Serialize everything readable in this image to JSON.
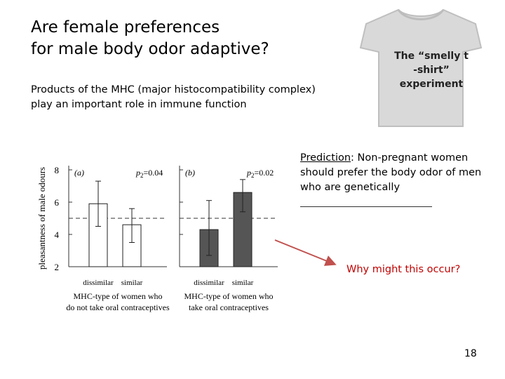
{
  "slide": {
    "title_line1": "Are female preferences",
    "title_line2": "for male body odor adaptive?",
    "subtitle_line1": "Products of the MHC (major histocompatibility complex)",
    "subtitle_line2": "play an important role in immune function",
    "tshirt_line1": "The “smelly t",
    "tshirt_line2": "-shirt”",
    "tshirt_line3": "experiment",
    "prediction_lead": "Prediction",
    "prediction_line1": ":  Non-pregnant women",
    "prediction_line2": "should prefer the body odor of men",
    "prediction_line3": "who are genetically",
    "why": "Why might this occur?",
    "page_number": "18",
    "colors": {
      "arrow": "#c0504d",
      "why_text": "#c00000",
      "shirt": "#d9d9d9"
    }
  },
  "chart_data": [
    {
      "type": "bar",
      "panel_label": "(a)",
      "p_label": "p",
      "p_subscript": "2",
      "p_value": "=0.04",
      "categories": [
        "dissimilar",
        "similar"
      ],
      "values": [
        5.9,
        4.6
      ],
      "error_upper": [
        7.3,
        5.6
      ],
      "error_lower": [
        4.5,
        3.5
      ],
      "xlabel_line1": "MHC-type of women who",
      "xlabel_line2": "do not take oral contraceptives",
      "ylabel": "pleasantness of male odours",
      "yticks": [
        "8",
        "6",
        "4",
        "2"
      ],
      "ylim": [
        2,
        8
      ],
      "reference_line": 5.0,
      "bar_fill": "#ffffff"
    },
    {
      "type": "bar",
      "panel_label": "(b)",
      "p_label": "p",
      "p_subscript": "2",
      "p_value": "=0.02",
      "categories": [
        "dissimilar",
        "similar"
      ],
      "values": [
        4.3,
        6.6
      ],
      "error_upper": [
        6.1,
        7.4
      ],
      "error_lower": [
        2.7,
        5.4
      ],
      "xlabel_line1": "MHC-type of women who",
      "xlabel_line2": "take oral contraceptives",
      "ylim": [
        2,
        8
      ],
      "reference_line": 5.0,
      "bar_fill": "#555555"
    }
  ]
}
